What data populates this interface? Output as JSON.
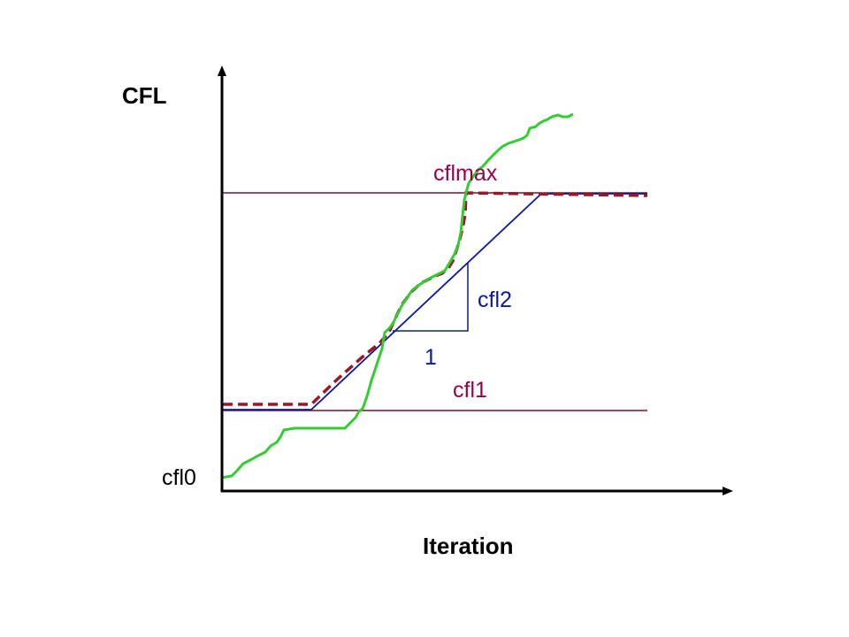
{
  "labels": {
    "y_axis": "CFL",
    "x_axis": "Iteration",
    "cfl0": "cfl0",
    "cfl1": "cfl1",
    "cfl2": "cfl2",
    "cflmax": "cflmax",
    "slope_run": "1"
  },
  "colors": {
    "axis": "#000000",
    "reference_lines": "#7a0f2a",
    "ramp_schedule": "#0b1a9a",
    "actual_cfl_dashed": "#a01525",
    "noisy_cfl": "#33cc33",
    "label_dark_red": "#99004d",
    "label_blue": "#0b1a9a"
  }
}
